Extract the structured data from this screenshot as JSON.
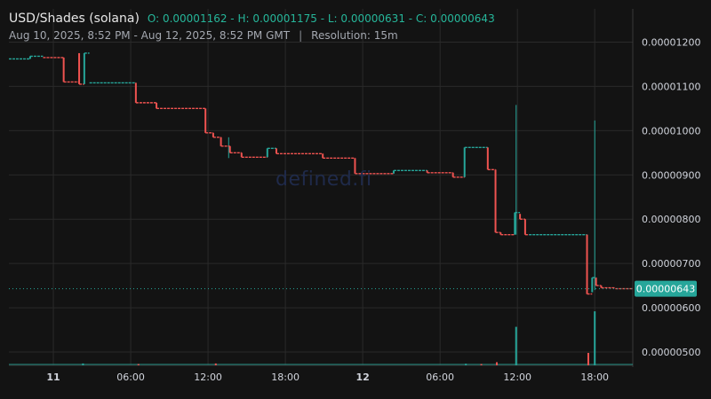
{
  "header": {
    "pair": "USD/Shades (solana)",
    "o_label": "O:",
    "o_value": "0.00001162",
    "h_label": "H:",
    "h_value": "0.00001175",
    "l_label": "L:",
    "l_value": "0.00000631",
    "c_label": "C:",
    "c_value": "0.00000643",
    "range": "Aug 10, 2025, 8:52 PM - Aug 12, 2025, 8:52 PM GMT",
    "separator": "|",
    "resolution": "Resolution: 15m"
  },
  "watermark": "defined.fi",
  "colors": {
    "background": "#131313",
    "up": "#26a69a",
    "down": "#ef5350",
    "grid": "#2a2a2a",
    "text": "#d1d4dc",
    "price_tag": "#26a69a"
  },
  "chart_data": {
    "type": "candlestick",
    "title": "USD/Shades (solana)",
    "resolution": "15m",
    "last_price": 6.43e-06,
    "last_price_label": "0.00000643",
    "ylim": [
      4.7e-06,
      1.275e-05
    ],
    "y_ticks": [
      1.2e-05,
      1.1e-05,
      1e-05,
      9e-06,
      8e-06,
      7e-06,
      6e-06,
      5e-06
    ],
    "y_tick_labels": [
      "0.00001200",
      "0.00001100",
      "0.00001000",
      "0.00000900",
      "0.00000800",
      "0.00000700",
      "0.00000600",
      "0.00000500"
    ],
    "x_ticks": [
      {
        "t": 10.4,
        "label": "11",
        "bold": true
      },
      {
        "t": 16.4,
        "label": "06:00",
        "bold": false
      },
      {
        "t": 22.4,
        "label": "12:00",
        "bold": false
      },
      {
        "t": 28.4,
        "label": "18:00",
        "bold": false
      },
      {
        "t": 34.4,
        "label": "12",
        "bold": true
      },
      {
        "t": 40.4,
        "label": "06:00",
        "bold": false
      },
      {
        "t": 46.4,
        "label": "12:00",
        "bold": false
      },
      {
        "t": 52.4,
        "label": "18:00",
        "bold": false
      }
    ],
    "xlim": [
      6.95,
      55.35
    ],
    "segments": [
      {
        "t0": 6.95,
        "t1": 8.6,
        "o": 1.162e-05,
        "c": 1.162e-05
      },
      {
        "t0": 8.6,
        "t1": 9.6,
        "o": 1.162e-05,
        "c": 1.168e-05
      },
      {
        "t0": 9.6,
        "t1": 11.2,
        "o": 1.168e-05,
        "c": 1.165e-05
      },
      {
        "t0": 11.2,
        "t1": 12.4,
        "o": 1.165e-05,
        "c": 1.11e-05
      },
      {
        "t0": 12.4,
        "t1": 12.8,
        "o": 1.175e-05,
        "c": 1.105e-05
      },
      {
        "t0": 12.8,
        "t1": 13.2,
        "o": 1.105e-05,
        "c": 1.175e-05
      },
      {
        "t0": 13.2,
        "t1": 16.8,
        "o": 1.108e-05,
        "c": 1.108e-05
      },
      {
        "t0": 16.8,
        "t1": 18.4,
        "o": 1.108e-05,
        "c": 1.063e-05
      },
      {
        "t0": 18.4,
        "t1": 22.2,
        "o": 1.063e-05,
        "c": 1.05e-05
      },
      {
        "t0": 22.2,
        "t1": 22.8,
        "o": 1.05e-05,
        "c": 9.95e-06
      },
      {
        "t0": 22.8,
        "t1": 23.4,
        "o": 9.95e-06,
        "c": 9.85e-06
      },
      {
        "t0": 23.4,
        "t1": 24.1,
        "o": 9.85e-06,
        "c": 9.65e-06
      },
      {
        "t0": 24.1,
        "t1": 25.0,
        "o": 9.65e-06,
        "c": 9.5e-06
      },
      {
        "t0": 25.0,
        "t1": 27.0,
        "o": 9.5e-06,
        "c": 9.4e-06
      },
      {
        "t0": 27.0,
        "t1": 27.7,
        "o": 9.4e-06,
        "c": 9.6e-06
      },
      {
        "t0": 27.7,
        "t1": 31.3,
        "o": 9.6e-06,
        "c": 9.48e-06
      },
      {
        "t0": 31.3,
        "t1": 33.8,
        "o": 9.48e-06,
        "c": 9.38e-06
      },
      {
        "t0": 33.8,
        "t1": 36.8,
        "o": 9.38e-06,
        "c": 9.03e-06
      },
      {
        "t0": 36.8,
        "t1": 39.4,
        "o": 9.03e-06,
        "c": 9.1e-06
      },
      {
        "t0": 39.4,
        "t1": 41.4,
        "o": 9.1e-06,
        "c": 9.05e-06
      },
      {
        "t0": 41.4,
        "t1": 42.3,
        "o": 9.05e-06,
        "c": 8.95e-06
      },
      {
        "t0": 42.3,
        "t1": 44.1,
        "o": 8.95e-06,
        "c": 9.62e-06
      },
      {
        "t0": 44.1,
        "t1": 44.7,
        "o": 9.62e-06,
        "c": 9.12e-06
      },
      {
        "t0": 44.7,
        "t1": 45.1,
        "o": 9.12e-06,
        "c": 7.7e-06
      },
      {
        "t0": 45.1,
        "t1": 46.2,
        "o": 7.7e-06,
        "c": 7.65e-06
      },
      {
        "t0": 46.2,
        "t1": 46.6,
        "o": 7.65e-06,
        "c": 8.15e-06
      },
      {
        "t0": 46.6,
        "t1": 47.0,
        "o": 8.12e-06,
        "c": 8e-06
      },
      {
        "t0": 47.0,
        "t1": 47.3,
        "o": 8e-06,
        "c": 7.65e-06
      },
      {
        "t0": 47.3,
        "t1": 51.8,
        "o": 7.65e-06,
        "c": 7.65e-06
      },
      {
        "t0": 51.8,
        "t1": 52.2,
        "o": 7.65e-06,
        "c": 6.31e-06
      },
      {
        "t0": 52.2,
        "t1": 52.5,
        "o": 6.35e-06,
        "c": 6.68e-06
      },
      {
        "t0": 52.5,
        "t1": 52.9,
        "o": 6.68e-06,
        "c": 6.5e-06
      },
      {
        "t0": 52.9,
        "t1": 54.0,
        "o": 6.5e-06,
        "c": 6.45e-06
      },
      {
        "t0": 54.0,
        "t1": 55.35,
        "o": 6.45e-06,
        "c": 6.43e-06
      }
    ],
    "wicks": [
      {
        "t": 46.3,
        "high": 1.058e-05,
        "low": 7.65e-06
      },
      {
        "t": 52.4,
        "high": 1.023e-05,
        "low": 6.4e-06
      },
      {
        "t": 24.0,
        "high": 9.85e-06,
        "low": 9.38e-06
      }
    ],
    "volume": {
      "max": 1.0,
      "bars": [
        {
          "t": 12.7,
          "v": 0.03,
          "up": true
        },
        {
          "t": 17.0,
          "v": 0.02,
          "up": false
        },
        {
          "t": 23.0,
          "v": 0.03,
          "up": false
        },
        {
          "t": 42.4,
          "v": 0.025,
          "up": true
        },
        {
          "t": 43.6,
          "v": 0.02,
          "up": false
        },
        {
          "t": 44.8,
          "v": 0.05,
          "up": false
        },
        {
          "t": 46.3,
          "v": 0.62,
          "up": true
        },
        {
          "t": 51.9,
          "v": 0.2,
          "up": false
        },
        {
          "t": 52.4,
          "v": 0.87,
          "up": true
        }
      ]
    }
  }
}
